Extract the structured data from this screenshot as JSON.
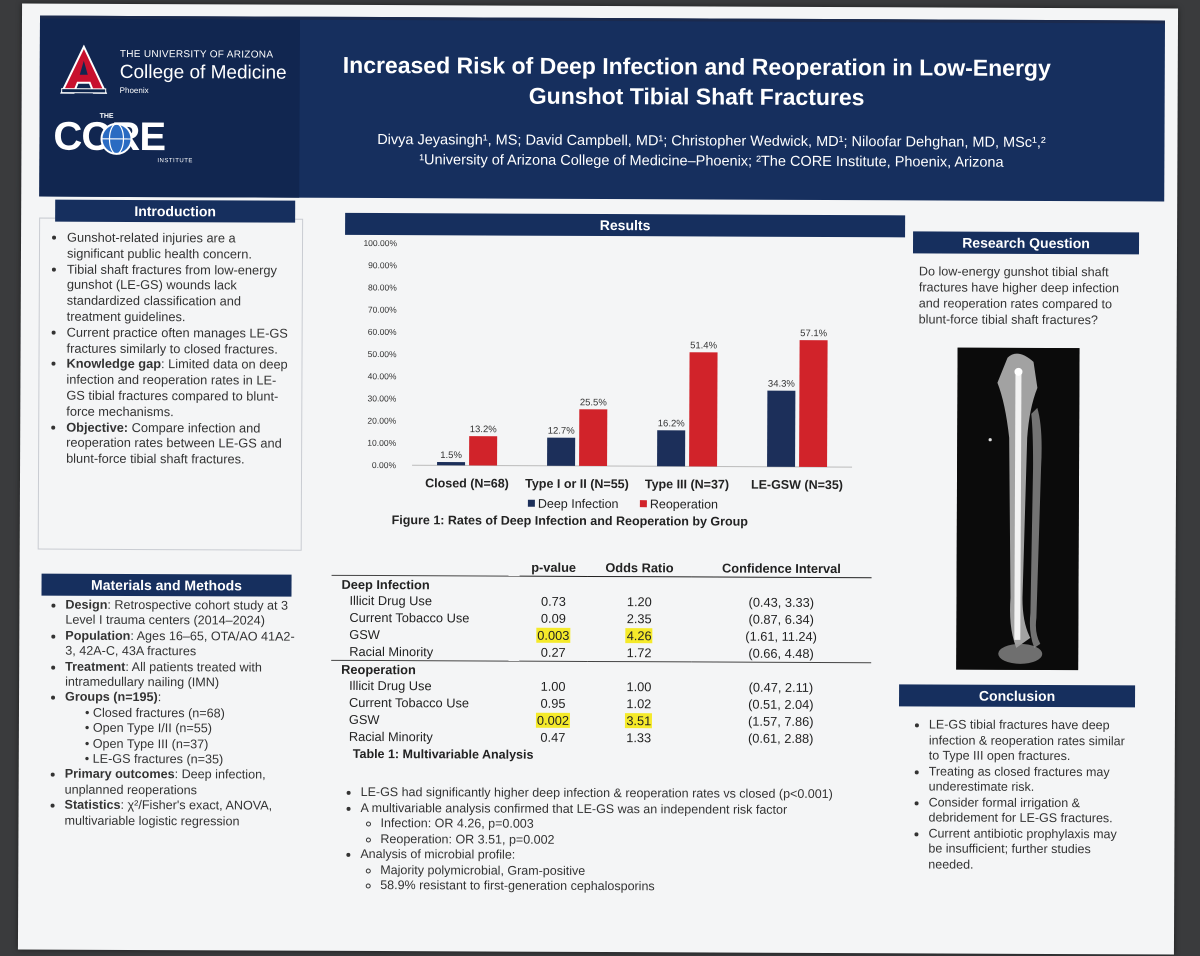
{
  "header": {
    "university_line": "THE UNIVERSITY OF ARIZONA",
    "college": "College of Medicine",
    "campus": "Phoenix",
    "core_the": "THE",
    "core_name": "CORE",
    "core_institute": "INSTITUTE",
    "title": "Increased Risk of Deep Infection and Reoperation in Low-Energy Gunshot Tibial Shaft Fractures",
    "authors": "Divya Jeyasingh¹, MS; David Campbell, MD¹; Christopher Wedwick, MD¹; Niloofar Dehghan, MD, MSc¹,²",
    "affiliations": "¹University of Arizona College of Medicine–Phoenix; ²The CORE Institute, Phoenix, Arizona"
  },
  "introduction": {
    "heading": "Introduction",
    "bullets": [
      {
        "bold": "",
        "text": "Gunshot-related injuries are a significant public health concern."
      },
      {
        "bold": "",
        "text": "Tibial shaft fractures from low-energy gunshot (LE-GS) wounds lack standardized classification and treatment guidelines."
      },
      {
        "bold": "",
        "text": "Current practice often manages LE-GS fractures similarly to closed fractures."
      },
      {
        "bold": "Knowledge gap",
        "text": ": Limited data on deep infection and reoperation rates in LE-GS tibial fractures compared to blunt-force mechanisms."
      },
      {
        "bold": "Objective:",
        "text": " Compare infection and reoperation rates between LE-GS and blunt-force tibial shaft fractures."
      }
    ]
  },
  "methods": {
    "heading": "Materials and Methods",
    "design_b": "Design",
    "design": ": Retrospective cohort study at 3 Level I trauma centers (2014–2024)",
    "population_b": "Population",
    "population": ": Ages 16–65, OTA/AO 41A2-3, 42A-C, 43A fractures",
    "treatment_b": "Treatment",
    "treatment": ": All patients treated with intramedullary nailing (IMN)",
    "groups_b": "Groups (n=195)",
    "groups_colon": ":",
    "groups": [
      "Closed fractures (n=68)",
      "Open Type I/II (n=55)",
      "Open Type III (n=37)",
      "LE-GS fractures (n=35)"
    ],
    "outcomes_b": "Primary outcomes",
    "outcomes": ": Deep infection, unplanned reoperations",
    "stats_b": "Statistics",
    "stats": ": χ²/Fisher's exact, ANOVA, multivariable logistic regression"
  },
  "results": {
    "heading": "Results",
    "figure_caption": "Figure 1: Rates of Deep Infection and Reoperation by Group",
    "table_caption": "Table 1: Multivariable Analysis",
    "table_headers": [
      "p-value",
      "Odds Ratio",
      "Confidence Interval"
    ],
    "table_groups": [
      {
        "name": "Deep Infection",
        "rows": [
          {
            "label": "Illicit Drug Use",
            "p": "0.73",
            "or": "1.20",
            "ci": "(0.43, 3.33)",
            "hl": false
          },
          {
            "label": "Current Tobacco Use",
            "p": "0.09",
            "or": "2.35",
            "ci": "(0.87, 6.34)",
            "hl": false
          },
          {
            "label": "GSW",
            "p": "0.003",
            "or": "4.26",
            "ci": "(1.61, 11.24)",
            "hl": true
          },
          {
            "label": "Racial Minority",
            "p": "0.27",
            "or": "1.72",
            "ci": "(0.66, 4.48)",
            "hl": false
          }
        ]
      },
      {
        "name": "Reoperation",
        "rows": [
          {
            "label": "Illicit Drug Use",
            "p": "1.00",
            "or": "1.00",
            "ci": "(0.47, 2.11)",
            "hl": false
          },
          {
            "label": "Current Tobacco Use",
            "p": "0.95",
            "or": "1.02",
            "ci": "(0.51, 2.04)",
            "hl": false
          },
          {
            "label": "GSW",
            "p": "0.002",
            "or": "3.51",
            "ci": "(1.57, 7.86)",
            "hl": true
          },
          {
            "label": "Racial Minority",
            "p": "0.47",
            "or": "1.33",
            "ci": "(0.61, 2.88)",
            "hl": false
          }
        ]
      }
    ],
    "summary": [
      {
        "text": "LE-GS had significantly higher deep infection & reoperation rates vs closed (p<0.001)",
        "sub": []
      },
      {
        "text": "A multivariable analysis confirmed that LE-GS was an independent risk factor",
        "sub": [
          "Infection: OR 4.26, p=0.003",
          "Reoperation: OR 3.51, p=0.002"
        ]
      },
      {
        "text": "Analysis of microbial profile:",
        "sub": [
          "Majority polymicrobial, Gram-positive",
          "58.9% resistant to first-generation cephalosporins"
        ]
      }
    ]
  },
  "research_question": {
    "heading": "Research Question",
    "text": "Do low-energy gunshot tibial shaft fractures have higher deep infection and reoperation rates compared to blunt-force tibial shaft fractures?"
  },
  "conclusion": {
    "heading": "Conclusion",
    "bullets": [
      "LE-GS tibial fractures have deep infection & reoperation rates similar to Type III open fractures.",
      "Treating as closed fractures may underestimate risk.",
      "Consider formal irrigation & debridement for LE-GS fractures.",
      "Current antibiotic prophylaxis may be insufficient; further studies needed."
    ]
  },
  "colors": {
    "navy": "#162f5e",
    "deep_infection": "#1c2f5a",
    "reoperation": "#d1232a",
    "highlight": "#f5ea2a"
  },
  "chart_data": {
    "type": "bar",
    "title": "Figure 1: Rates of Deep Infection and Reoperation by Group",
    "categories": [
      "Closed (N=68)",
      "Type I or II (N=55)",
      "Type III (N=37)",
      "LE-GSW (N=35)"
    ],
    "series": [
      {
        "name": "Deep Infection",
        "values": [
          1.5,
          12.7,
          16.2,
          34.3
        ],
        "labels": [
          "1.5%",
          "12.7%",
          "16.2%",
          "34.3%"
        ],
        "color": "#1c2f5a"
      },
      {
        "name": "Reoperation",
        "values": [
          13.2,
          25.5,
          51.4,
          57.1
        ],
        "labels": [
          "13.2%",
          "25.5%",
          "51.4%",
          "57.1%"
        ],
        "color": "#d1232a"
      }
    ],
    "yticks": [
      "0.00%",
      "10.00%",
      "20.00%",
      "30.00%",
      "40.00%",
      "50.00%",
      "60.00%",
      "70.00%",
      "80.00%",
      "90.00%",
      "100.00%"
    ],
    "ylim": [
      0,
      100
    ],
    "legend": "bottom"
  }
}
